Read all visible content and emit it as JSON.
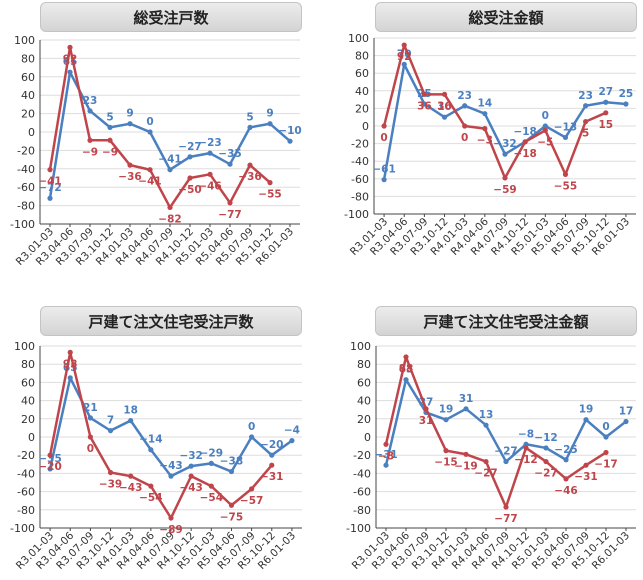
{
  "colors": {
    "blue": "#4a7fc0",
    "red": "#c0454b",
    "grid": "#dddddd",
    "axis": "#444444"
  },
  "chart_data": [
    {
      "type": "line",
      "title": "総受注戸数",
      "categories": [
        "R3.01-03",
        "R3.04-06",
        "R3.07-09",
        "R3.10-12",
        "R4.01-03",
        "R4.04-06",
        "R4.07-09",
        "R4.10-12",
        "R5.01-03",
        "R5.04-06",
        "R5.07-09",
        "R5.10-12",
        "R6.01-03"
      ],
      "ylim": [
        -100,
        100
      ],
      "yticks": [
        100,
        80,
        60,
        40,
        20,
        0,
        -20,
        -40,
        -60,
        -80,
        -100
      ],
      "series": [
        {
          "color": "#4a7fc0",
          "values": [
            -72,
            65,
            23,
            5,
            9,
            0,
            -41,
            -27,
            -23,
            -35,
            5,
            9,
            -10
          ]
        },
        {
          "color": "#c0454b",
          "values": [
            -41,
            92,
            -9,
            -9,
            -36,
            -41,
            -82,
            -50,
            -46,
            -77,
            -36,
            -55,
            null
          ]
        }
      ]
    },
    {
      "type": "line",
      "title": "総受注金額",
      "categories": [
        "R3.01-03",
        "R3.04-06",
        "R3.07-09",
        "R3.10-12",
        "R4.01-03",
        "R4.04-06",
        "R4.07-09",
        "R4.10-12",
        "R5.01-03",
        "R5.04-06",
        "R5.07-09",
        "R5.10-12",
        "R6.01-03"
      ],
      "ylim": [
        -100,
        100
      ],
      "yticks": [
        100,
        80,
        60,
        40,
        20,
        0,
        -20,
        -40,
        -60,
        -80,
        -100
      ],
      "series": [
        {
          "color": "#4a7fc0",
          "values": [
            -61,
            70,
            25,
            10,
            23,
            14,
            -32,
            -18,
            0,
            -13,
            23,
            27,
            25
          ]
        },
        {
          "color": "#c0454b",
          "values": [
            0,
            92,
            36,
            36,
            0,
            -3,
            -59,
            -18,
            -5,
            -55,
            5,
            15,
            null
          ]
        }
      ]
    },
    {
      "type": "line",
      "title": "戸建て注文住宅受注戸数",
      "categories": [
        "R3.01-03",
        "R3.04-06",
        "R3.07-09",
        "R3.10-12",
        "R4.01-03",
        "R4.04-06",
        "R4.07-09",
        "R4.10-12",
        "R5.01-03",
        "R5.04-06",
        "R5.07-09",
        "R5.10-12",
        "R6.01-03"
      ],
      "ylim": [
        -100,
        100
      ],
      "yticks": [
        100,
        80,
        60,
        40,
        20,
        0,
        -20,
        -40,
        -60,
        -80,
        -100
      ],
      "series": [
        {
          "color": "#4a7fc0",
          "values": [
            -35,
            65,
            21,
            7,
            18,
            -14,
            -43,
            -32,
            -29,
            -38,
            0,
            -20,
            -4
          ]
        },
        {
          "color": "#c0454b",
          "values": [
            -20,
            93,
            0,
            -39,
            -43,
            -54,
            -89,
            -43,
            -54,
            -75,
            -57,
            -31,
            null
          ]
        }
      ]
    },
    {
      "type": "line",
      "title": "戸建て注文住宅受注金額",
      "categories": [
        "R3.01-03",
        "R3.04-06",
        "R3.07-09",
        "R3.10-12",
        "R4.01-03",
        "R4.04-06",
        "R4.07-09",
        "R4.10-12",
        "R5.01-03",
        "R5.04-06",
        "R5.07-09",
        "R5.10-12",
        "R6.01-03"
      ],
      "ylim": [
        -100,
        100
      ],
      "yticks": [
        100,
        80,
        60,
        40,
        20,
        0,
        -20,
        -40,
        -60,
        -80,
        -100
      ],
      "series": [
        {
          "color": "#4a7fc0",
          "values": [
            -31,
            63,
            27,
            19,
            31,
            13,
            -27,
            -8,
            -12,
            -25,
            19,
            0,
            17
          ]
        },
        {
          "color": "#c0454b",
          "values": [
            -8,
            88,
            31,
            -15,
            -19,
            -27,
            -77,
            -12,
            -27,
            -46,
            -31,
            -17,
            null
          ]
        }
      ]
    }
  ]
}
